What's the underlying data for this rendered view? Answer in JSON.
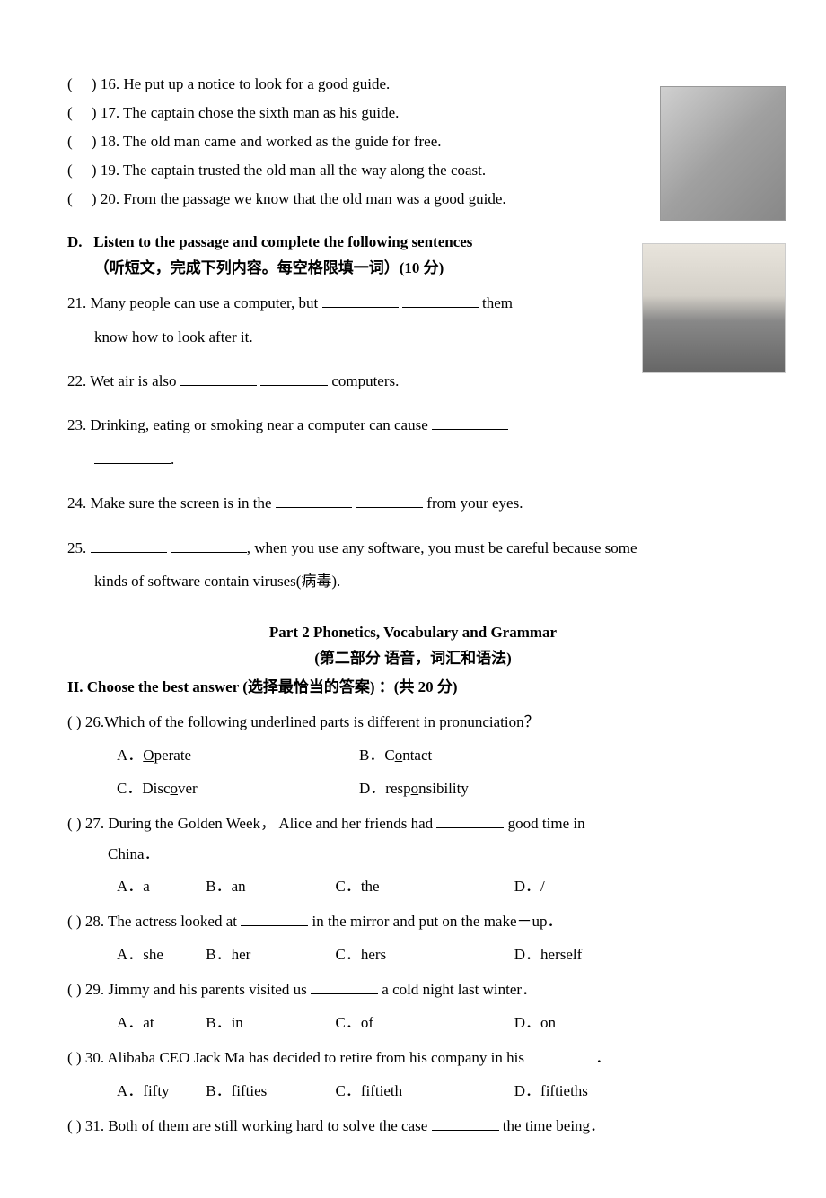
{
  "tf_questions": [
    {
      "num": "16",
      "text": "He put up a notice to look for a good guide."
    },
    {
      "num": "17",
      "text": "The captain chose the sixth man as his guide."
    },
    {
      "num": "18",
      "text": "The old man came and worked as the guide for free."
    },
    {
      "num": "19",
      "text": "The captain trusted the old man all the way along the coast."
    },
    {
      "num": "20",
      "text": "From the passage we know that the old man was a good guide."
    }
  ],
  "section_d": {
    "label": "D.",
    "title": "Listen to the passage and complete the following sentences",
    "subtitle": "（听短文，完成下列内容。每空格限填一词）(10 分)"
  },
  "fill_questions": {
    "q21_pre": "21. Many people can use a computer, but",
    "q21_post": "them",
    "q21_line2": "know how to look after it.",
    "q22_pre": "22. Wet air is also",
    "q22_post": "computers.",
    "q23_pre": "23. Drinking, eating or smoking near a computer can cause",
    "q23_post": ".",
    "q24_pre": "24. Make sure the screen is in the",
    "q24_post": "from your eyes.",
    "q25_pre": "25.",
    "q25_mid": ", when you use any software, you must be careful because some",
    "q25_line2": "kinds of software contain viruses(病毒)."
  },
  "part2": {
    "title": "Part 2   Phonetics, Vocabulary and Grammar",
    "subtitle": "(第二部分 语音，词汇和语法)"
  },
  "section_ii": "II.  Choose the best answer (选择最恰当的答案)  ：(共 20 分)",
  "mc": {
    "q26": {
      "stem": "(     ) 26.Which of the following underlined parts is different in pronunciation？",
      "a_pre": "A．",
      "a_u": "O",
      "a_post": "perate",
      "b_pre": "B．C",
      "b_u": "o",
      "b_post": "ntact",
      "c_pre": "C．Disc",
      "c_u": "o",
      "c_post": "ver",
      "d_pre": "D．resp",
      "d_u": "o",
      "d_post": "nsibility"
    },
    "q27": {
      "stem_pre": "(     ) 27. During the Golden Week， Alice and her friends had ",
      "stem_post": " good time in",
      "stem_line2": "China．",
      "a": "A．a",
      "b": "B．an",
      "c": "C．the",
      "d": "D．/"
    },
    "q28": {
      "stem_pre": "(     ) 28. The actress looked at ",
      "stem_post": " in the mirror and put on the make－up．",
      "a": "A．she",
      "b": "B．her",
      "c": "C．hers",
      "d": "D．herself"
    },
    "q29": {
      "stem_pre": "(     ) 29. Jimmy and his parents visited us ",
      "stem_post": " a cold night last winter．",
      "a": "A．at",
      "b": "B．in",
      "c": "C．of",
      "d": "D．on"
    },
    "q30": {
      "stem_pre": "(     ) 30. Alibaba CEO Jack Ma has decided to retire from his company in his ",
      "stem_post": "．",
      "a": "A．fifty",
      "b": "B．fifties",
      "c": "C．fiftieth",
      "d": "D．fiftieths"
    },
    "q31": {
      "stem_pre": "(     ) 31. Both of them are still working hard to solve the case ",
      "stem_post": " the time being．"
    }
  }
}
